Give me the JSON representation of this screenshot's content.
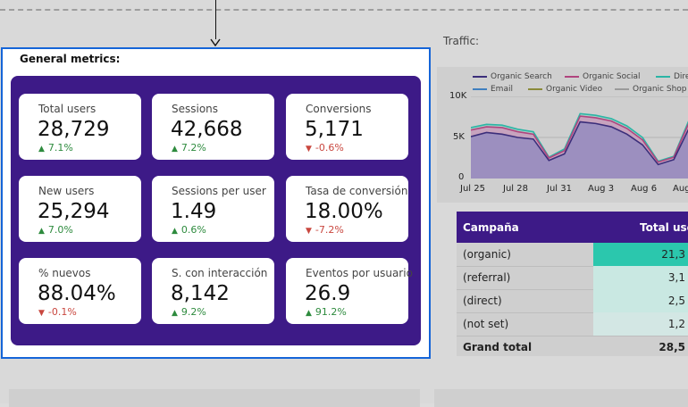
{
  "panel": {
    "title": "General metrics:",
    "cards": [
      {
        "label": "Total users",
        "value": "28,729",
        "delta": "7.1%",
        "dir": "up"
      },
      {
        "label": "Sessions",
        "value": "42,668",
        "delta": "7.2%",
        "dir": "up"
      },
      {
        "label": "Conversions",
        "value": "5,171",
        "delta": "-0.6%",
        "dir": "down"
      },
      {
        "label": "New users",
        "value": "25,294",
        "delta": "7.0%",
        "dir": "up"
      },
      {
        "label": "Sessions per user",
        "value": "1.49",
        "delta": "0.6%",
        "dir": "up"
      },
      {
        "label": "Tasa de conversión",
        "value": "18.00%",
        "delta": "-7.2%",
        "dir": "down"
      },
      {
        "label": "% nuevos",
        "value": "88.04%",
        "delta": "-0.1%",
        "dir": "down"
      },
      {
        "label": "S. con interacción",
        "value": "8,142",
        "delta": "9.2%",
        "dir": "up"
      },
      {
        "label": "Eventos por usuario",
        "value": "26.9",
        "delta": "91.2%",
        "dir": "up"
      }
    ]
  },
  "traffic": {
    "title": "Traffic:",
    "legend": [
      {
        "name": "Organic Search",
        "color": "#3b2e7a"
      },
      {
        "name": "Organic Social",
        "color": "#b0447e"
      },
      {
        "name": "Dire",
        "color": "#2bb5a5"
      },
      {
        "name": "Email",
        "color": "#3f7fbf"
      },
      {
        "name": "Organic Video",
        "color": "#8a8a3a"
      },
      {
        "name": "Organic Shop",
        "color": "#9a9a9a"
      }
    ],
    "chart_data": {
      "type": "area",
      "x": [
        "Jul 25",
        "Jul 26",
        "Jul 27",
        "Jul 28",
        "Jul 29",
        "Jul 30",
        "Jul 31",
        "Aug 1",
        "Aug 2",
        "Aug 3",
        "Aug 4",
        "Aug 5",
        "Aug 6",
        "Aug 7",
        "Aug 8",
        "Aug 9"
      ],
      "y_ticks": [
        "0",
        "5K",
        "10K"
      ],
      "x_ticks": [
        "Jul 25",
        "Jul 28",
        "Jul 31",
        "Aug 3",
        "Aug 6",
        "Aug"
      ],
      "ylim": [
        0,
        10000
      ],
      "series": [
        {
          "name": "Organic Search",
          "values": [
            5100,
            5600,
            5400,
            5000,
            4800,
            2200,
            3000,
            6900,
            6700,
            6300,
            5400,
            4100,
            1700,
            2300,
            6200,
            6500
          ]
        },
        {
          "name": "Organic Social",
          "values": [
            800,
            700,
            800,
            700,
            600,
            300,
            400,
            700,
            700,
            700,
            700,
            600,
            300,
            300,
            700,
            700
          ]
        },
        {
          "name": "Dire",
          "values": [
            300,
            300,
            300,
            300,
            300,
            100,
            200,
            300,
            300,
            300,
            300,
            300,
            100,
            100,
            300,
            300
          ]
        }
      ]
    }
  },
  "table": {
    "headers": [
      "Campaña",
      "Total use"
    ],
    "rows": [
      {
        "name": "(organic)",
        "value": "21,3",
        "bar": "#2bc7ad"
      },
      {
        "name": "(referral)",
        "value": "3,1",
        "bar": "#c9e8e2"
      },
      {
        "name": "(direct)",
        "value": "2,5",
        "bar": "#c9e8e2"
      },
      {
        "name": "(not set)",
        "value": "1,2",
        "bar": "#d3e7e4"
      }
    ],
    "total": {
      "name": "Grand total",
      "value": "28,5"
    }
  }
}
